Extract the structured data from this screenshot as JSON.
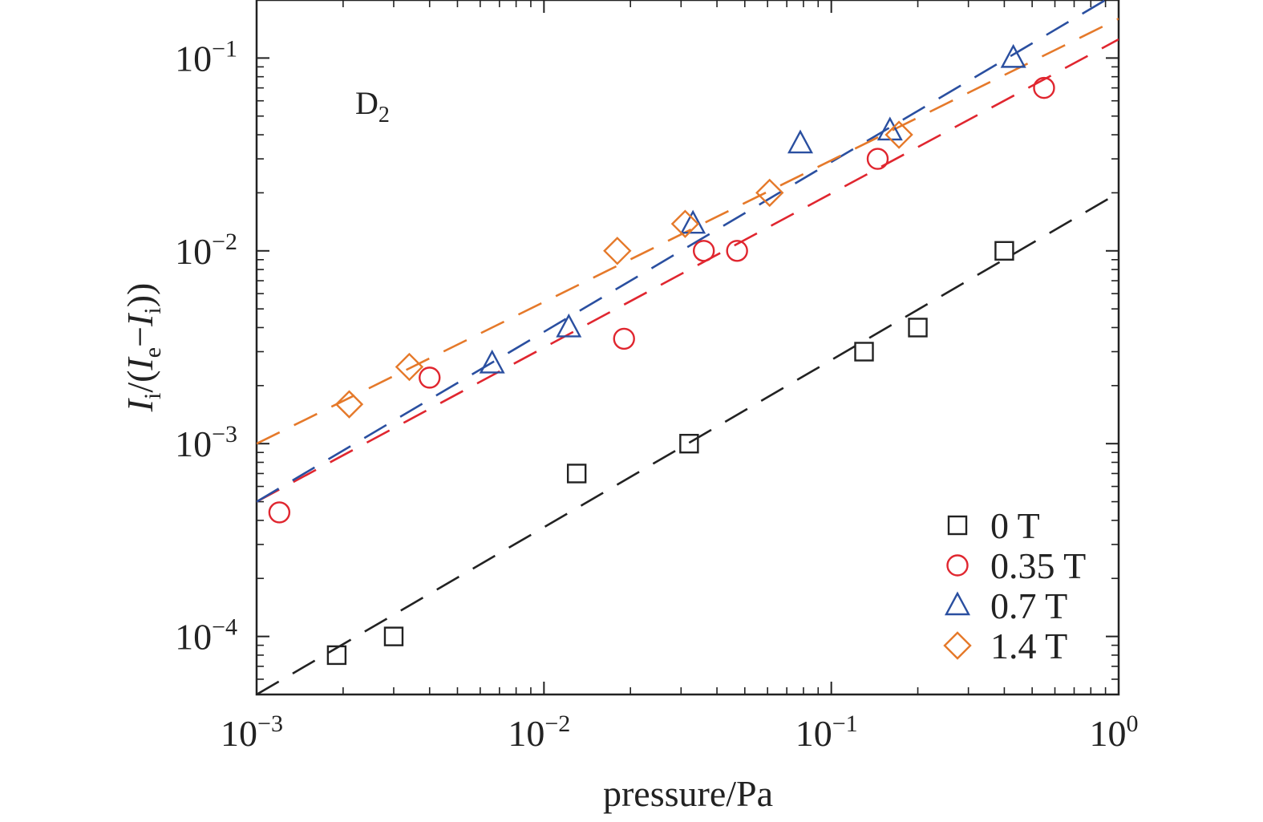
{
  "chart_data": {
    "type": "scatter",
    "title": "",
    "xlabel": "pressure/Pa",
    "ylabel": "I_i/(I_e−I_i)",
    "xscale": "log",
    "yscale": "log",
    "xlim": [
      0.001,
      1
    ],
    "ylim": [
      5e-05,
      0.2
    ],
    "x_ticks": [
      {
        "value": 0.001,
        "base": "10",
        "exp": "−3"
      },
      {
        "value": 0.01,
        "base": "10",
        "exp": "−2"
      },
      {
        "value": 0.1,
        "base": "10",
        "exp": "−1"
      },
      {
        "value": 1,
        "base": "10",
        "exp": "0"
      }
    ],
    "y_ticks": [
      {
        "value": 0.0001,
        "base": "10",
        "exp": "−4"
      },
      {
        "value": 0.001,
        "base": "10",
        "exp": "−3"
      },
      {
        "value": 0.01,
        "base": "10",
        "exp": "−2"
      },
      {
        "value": 0.1,
        "base": "10",
        "exp": "−1"
      }
    ],
    "annotation": {
      "base": "D",
      "sub": "2"
    },
    "legend_position": "bottom-right",
    "grid": false,
    "series": [
      {
        "name": "0 T",
        "marker": "square",
        "color": "#222222",
        "fit_color": "#222222",
        "points": [
          {
            "x": 0.0019,
            "y": 8e-05
          },
          {
            "x": 0.003,
            "y": 0.0001
          },
          {
            "x": 0.013,
            "y": 0.0007
          },
          {
            "x": 0.032,
            "y": 0.001
          },
          {
            "x": 0.13,
            "y": 0.003
          },
          {
            "x": 0.2,
            "y": 0.004
          },
          {
            "x": 0.4,
            "y": 0.01
          }
        ],
        "fit": [
          {
            "x": 0.001,
            "y": 5e-05
          },
          {
            "x": 1,
            "y": 0.02
          }
        ]
      },
      {
        "name": "0.35 T",
        "marker": "circle",
        "color": "#e0262f",
        "fit_color": "#e0262f",
        "points": [
          {
            "x": 0.0012,
            "y": 0.00044
          },
          {
            "x": 0.004,
            "y": 0.0022
          },
          {
            "x": 0.019,
            "y": 0.0035
          },
          {
            "x": 0.036,
            "y": 0.01
          },
          {
            "x": 0.047,
            "y": 0.01
          },
          {
            "x": 0.145,
            "y": 0.03
          },
          {
            "x": 0.55,
            "y": 0.07
          }
        ],
        "fit": [
          {
            "x": 0.001,
            "y": 0.0005
          },
          {
            "x": 1,
            "y": 0.125
          }
        ]
      },
      {
        "name": "0.7 T",
        "marker": "triangle",
        "color": "#2a4fa0",
        "fit_color": "#2a4fa0",
        "points": [
          {
            "x": 0.0066,
            "y": 0.0026
          },
          {
            "x": 0.0122,
            "y": 0.004
          },
          {
            "x": 0.033,
            "y": 0.0138
          },
          {
            "x": 0.078,
            "y": 0.036
          },
          {
            "x": 0.16,
            "y": 0.042
          },
          {
            "x": 0.43,
            "y": 0.1
          }
        ],
        "fit": [
          {
            "x": 0.001,
            "y": 0.0005
          },
          {
            "x": 0.9,
            "y": 0.2
          }
        ]
      },
      {
        "name": "1.4 T",
        "marker": "diamond",
        "color": "#e5792a",
        "fit_color": "#e5792a",
        "points": [
          {
            "x": 0.0021,
            "y": 0.0016
          },
          {
            "x": 0.0034,
            "y": 0.0025
          },
          {
            "x": 0.018,
            "y": 0.01
          },
          {
            "x": 0.031,
            "y": 0.0138
          },
          {
            "x": 0.061,
            "y": 0.02
          },
          {
            "x": 0.172,
            "y": 0.04
          }
        ],
        "fit": [
          {
            "x": 0.001,
            "y": 0.001
          },
          {
            "x": 1,
            "y": 0.16
          }
        ]
      }
    ]
  }
}
